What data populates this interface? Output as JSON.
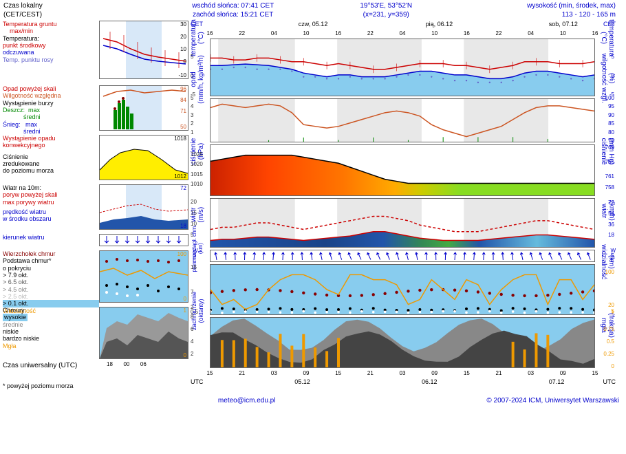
{
  "header": {
    "local_time_label": "Czas lokalny",
    "local_time_sub": "(CET/CEST)",
    "sunrise": "wschód słońca: 07:41 CET",
    "sunset": "zachód słońca: 15:21 CET",
    "coords": "19°53'E, 53°52'N",
    "grid": "(x=231, y=359)",
    "elev_label": "wysokość (min, środek, max)",
    "elev_val": "113 - 120 - 165 m"
  },
  "days": {
    "d1": "czw, 05.12",
    "d2": "pią, 06.12",
    "d3": "sob, 07.12"
  },
  "legend": {
    "temp_title": "Temperatura gruntu\n    max/min",
    "temp_sub": "Temperatura:",
    "temp_mid": "punkt środkowy",
    "temp_felt": "odczuwana",
    "temp_dew": "Temp. punktu rosy",
    "precip_over": "Opad powyżej skali",
    "humidity": "Wilgotność względna",
    "storm": "Wystąpienie burzy",
    "rain": "Deszcz:  max\n            średni",
    "snow": "Śnieg:   max\n            średni",
    "convective": "Wystąpienie opadu\nkonwekcyjnego",
    "pressure": "Ciśnienie\nzredukowane\ndo poziomu morza",
    "wind_title": "Wiatr na 10m:",
    "gust_over": "poryw powyżej skali",
    "gust_max": "max porywy wiatru",
    "wind_speed": "prędkość wiatru\nw środku obszaru",
    "wind_dir": "kierunek wiatru",
    "cloud_top": "Wierzchołek chmur",
    "cloud_base": "Podstawa chmur*\no pokryciu",
    "okta79": "> 7.9 okt.",
    "okta65": "> 6.5 okt.",
    "okta45": "> 4.5 okt.",
    "okta25": "> 2.5 okt.",
    "okta01": "> 0.1 okt.",
    "visibility": "Widzialność",
    "clouds": "Chmury:",
    "high": "wysokie",
    "mid": "średnie",
    "low": "niskie",
    "vlow": "bardzo niskie",
    "fog": "Mgła",
    "utc": "Czas uniwersalny (UTC)",
    "cet": "CET",
    "utc_short": "UTC",
    "asl": "* powyżej poziomu morza"
  },
  "axis_labels": {
    "temp": "temperatura\n(°C)",
    "precip": "opad\n(mm/h, kg/m²/h)",
    "humidity": "(%)\nwilgotność wzgl.",
    "pressure_l": "ciśnienie\n(hPa)",
    "pressure_r": "(mm Hg)\nciśnienie",
    "wind_l": "wiatr\n(m/s)",
    "wind_r": "(km/h)\nwiatr",
    "vis_l": "pion. rozciągł. chm.\n(km)",
    "vis_r": "(km)\nwidzialność",
    "cloud_l": "zachmurzenie\n(oktanty)",
    "cloud_r": "(frakcja)\nmgła"
  },
  "colors": {
    "red": "#cc0000",
    "blue": "#0000cc",
    "purple": "#6666cc",
    "green": "#008800",
    "orange": "#ff6600",
    "darkred": "#880000",
    "humidity": "#cc5522",
    "yellow": "#ffee00",
    "orange_fill": "#ff5500",
    "lime": "#88dd22",
    "skyblue": "#88ccee",
    "darkblue_fill": "#2255aa",
    "gray_cloud": "#555555",
    "visibility": "#ee9900"
  },
  "chart_temp": {
    "ylim": [
      -5,
      10
    ],
    "yticks": [
      -5,
      0,
      5
    ],
    "red_line": [
      5,
      5,
      4.5,
      4.5,
      5,
      5,
      4.5,
      4,
      4,
      3.5,
      3,
      3.5,
      3,
      2.5,
      2,
      2,
      2.5,
      3,
      3.5,
      3.5,
      3.5,
      3,
      3,
      2.5,
      2,
      2.5,
      3,
      4,
      4,
      4,
      3.5,
      3.5,
      3.5,
      4
    ],
    "blue_line": [
      3,
      3,
      3.2,
      3.4,
      3.2,
      3,
      2.5,
      2,
      1,
      0.5,
      0,
      0.5,
      0.5,
      0,
      0,
      0,
      0.5,
      1,
      1.5,
      1.5,
      1,
      0.5,
      0.5,
      0,
      -0.5,
      -0.5,
      0,
      1,
      1.5,
      1.5,
      1,
      0.5,
      0,
      0.5
    ],
    "dew_line": [
      2,
      2,
      2.5,
      2.5,
      2,
      2,
      2,
      1.5,
      0,
      0,
      -0.5,
      -0.5,
      0,
      -0.5,
      -0.5,
      -0.5,
      0,
      0.5,
      0.5,
      0,
      -0.5,
      -1,
      -1,
      -1.5,
      -1.5,
      -1.5,
      -1,
      0,
      0.5,
      0.5,
      0,
      -0.5,
      -1,
      -0.5
    ]
  },
  "chart_humidity": {
    "ylim": [
      75,
      100
    ],
    "yticks": [
      75,
      80,
      85,
      90,
      95,
      100
    ],
    "line": [
      95,
      97,
      96,
      95,
      96,
      97,
      96,
      92,
      85,
      84,
      83,
      84,
      86,
      88,
      90,
      92,
      93,
      92,
      90,
      85,
      82,
      80,
      78,
      80,
      82,
      84,
      88,
      92,
      95,
      96,
      96,
      95,
      94,
      93
    ]
  },
  "chart_pressure": {
    "ylim": [
      1005,
      1030
    ],
    "yticks": [
      1010,
      1015,
      1020,
      1025
    ],
    "line": [
      1022,
      1023,
      1024,
      1025,
      1025,
      1025,
      1025,
      1025,
      1024,
      1023,
      1022,
      1021,
      1019,
      1017,
      1015,
      1013,
      1012,
      1011,
      1011,
      1011,
      1011,
      1011,
      1011,
      1011,
      1011,
      1011,
      1011,
      1011,
      1011,
      1011,
      1011,
      1011,
      1011,
      1011
    ],
    "r_ticks": [
      758,
      761,
      765,
      769
    ]
  },
  "chart_wind": {
    "ylim": [
      0,
      22
    ],
    "yticks": [
      5,
      10,
      15,
      20
    ],
    "r_ticks": [
      18,
      36,
      54,
      72
    ],
    "gust": [
      8,
      9,
      9,
      10,
      11,
      11,
      10,
      9,
      8,
      9,
      10,
      11,
      12,
      13,
      14,
      14,
      13,
      12,
      10,
      9,
      8,
      7,
      7,
      7,
      8,
      9,
      10,
      11,
      12,
      12,
      11,
      10,
      9,
      8
    ],
    "speed": [
      3,
      3.5,
      3.5,
      4,
      4.5,
      4.5,
      4,
      3.5,
      3,
      3.5,
      4,
      4.5,
      5,
      6,
      7,
      7,
      6,
      5,
      4,
      3.5,
      3,
      3,
      3,
      3,
      3.5,
      4,
      4.5,
      5,
      5.5,
      5.5,
      5,
      4.5,
      4,
      3.5
    ]
  },
  "chart_vis": {
    "ylim": [
      0,
      16
    ],
    "yticks": [
      0.5,
      2.0,
      7.0,
      15.0
    ],
    "vis_line": [
      5,
      2,
      3,
      1,
      2,
      5,
      7,
      8,
      8,
      7,
      5,
      4,
      8,
      8,
      7,
      7,
      6,
      2,
      3,
      7,
      5,
      3,
      7,
      6,
      2,
      5,
      7,
      8,
      8,
      2,
      7,
      7,
      3,
      6
    ]
  },
  "chart_cloud": {
    "ylim": [
      0,
      8
    ],
    "yticks": [
      2,
      4,
      6,
      8
    ]
  },
  "footer": {
    "email": "meteo@icm.edu.pl",
    "copyright": "© 2007-2024 ICM, Uniwersytet Warszawski"
  },
  "time_ticks_big": [
    "16",
    "22",
    "04",
    "10",
    "16",
    "22",
    "04",
    "10",
    "16",
    "22",
    "04",
    "10",
    "16"
  ],
  "time_ticks_utc": [
    "15",
    "21",
    "03",
    "09",
    "15",
    "21",
    "03",
    "09",
    "15",
    "21",
    "03",
    "09",
    "15"
  ],
  "utc_dates": [
    "05.12",
    "06.12",
    "07.12"
  ]
}
